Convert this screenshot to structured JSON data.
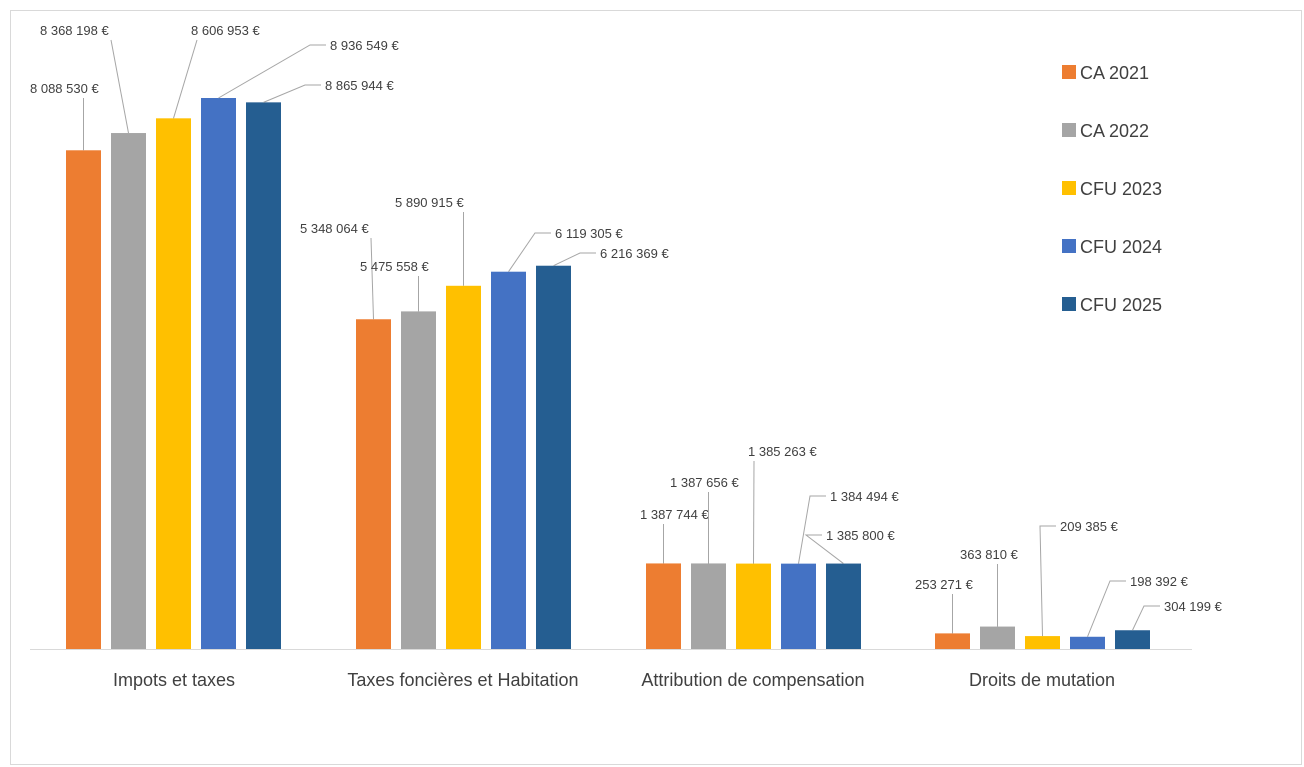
{
  "chart_data": {
    "type": "bar",
    "title": "",
    "xlabel": "",
    "ylabel": "",
    "ylim": [
      0,
      9500000
    ],
    "grid": false,
    "legend_position": "right",
    "categories": [
      "Impots et taxes",
      "Taxes foncières et Habitation",
      "Attribution de compensation",
      "Droits de mutation"
    ],
    "series": [
      {
        "name": "CA 2021",
        "color": "#ED7D31",
        "values": [
          8088530,
          5348064,
          1387744,
          253271
        ],
        "labels": [
          "8 088 530 €",
          "5 348 064 €",
          "1 387 744 €",
          "253 271 €"
        ]
      },
      {
        "name": "CA 2022",
        "color": "#A5A5A5",
        "values": [
          8368198,
          5475558,
          1387656,
          363810
        ],
        "labels": [
          "8 368 198 €",
          "5 475 558 €",
          "1 387 656 €",
          "363 810 €"
        ]
      },
      {
        "name": "CFU 2023",
        "color": "#FFC000",
        "values": [
          8606953,
          5890915,
          1385263,
          209385
        ],
        "labels": [
          "8 606 953 €",
          "5 890 915 €",
          "1 385 263 €",
          "209 385 €"
        ]
      },
      {
        "name": "CFU 2024",
        "color": "#4472C4",
        "values": [
          8936549,
          6119305,
          1384494,
          198392
        ],
        "labels": [
          "8 936 549 €",
          "6 119 305 €",
          "1 384 494 €",
          "198 392 €"
        ]
      },
      {
        "name": "CFU 2025",
        "color": "#255E91",
        "values": [
          8865944,
          6216369,
          1385800,
          304199
        ],
        "labels": [
          "8 865 944 €",
          "6 216 369 €",
          "1 385 800 €",
          "304 199 €"
        ]
      }
    ]
  }
}
